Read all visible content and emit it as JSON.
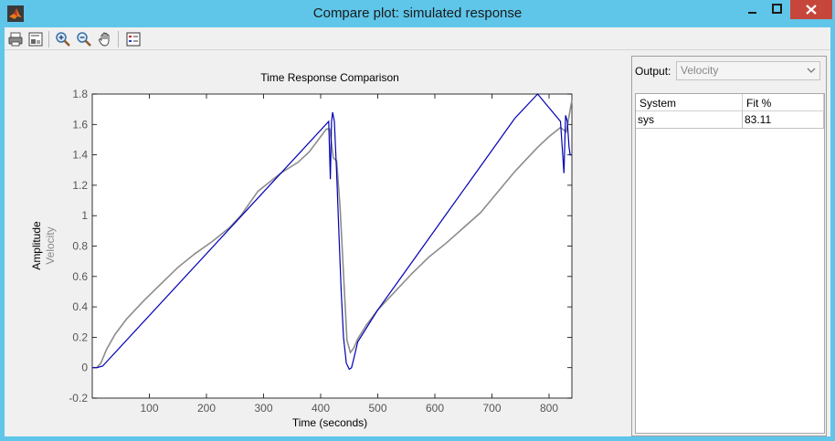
{
  "window": {
    "title": "Compare plot: simulated response",
    "app_icon": "matlab-icon"
  },
  "toolbar": {
    "items": [
      "print-icon",
      "print-preview-icon",
      "zoom-in-icon",
      "zoom-out-icon",
      "pan-hand-icon",
      "legend-icon"
    ]
  },
  "panel": {
    "output_label": "Output:",
    "output_value": "Velocity",
    "table": {
      "headers": [
        "System",
        "Fit %"
      ],
      "rows": [
        [
          "sys",
          "83.11"
        ]
      ]
    }
  },
  "chart_data": {
    "type": "line",
    "title": "Time Response Comparison",
    "xlabel": "Time (seconds)",
    "ylabel": "Amplitude",
    "ylabel2": "Velocity",
    "xlim": [
      0,
      840
    ],
    "ylim": [
      -0.2,
      1.8
    ],
    "xticks": [
      100,
      200,
      300,
      400,
      500,
      600,
      700,
      800
    ],
    "yticks": [
      -0.2,
      0,
      0.2,
      0.4,
      0.6,
      0.8,
      1,
      1.2,
      1.4,
      1.6,
      1.8
    ],
    "grid": false,
    "series": [
      {
        "color": "#8c8c8c",
        "x": [
          0,
          8,
          15,
          25,
          40,
          60,
          90,
          120,
          150,
          180,
          210,
          240,
          260,
          275,
          290,
          300,
          310,
          330,
          360,
          380,
          400,
          410,
          416,
          422,
          428,
          434,
          440,
          446,
          452,
          458,
          465,
          480,
          500,
          530,
          560,
          590,
          620,
          650,
          680,
          700,
          720,
          740,
          760,
          780,
          800,
          820,
          830,
          838,
          840
        ],
        "y": [
          0,
          0,
          0.03,
          0.12,
          0.22,
          0.32,
          0.44,
          0.55,
          0.66,
          0.75,
          0.83,
          0.92,
          1.0,
          1.08,
          1.16,
          1.19,
          1.22,
          1.28,
          1.35,
          1.42,
          1.52,
          1.57,
          1.57,
          1.38,
          1.36,
          1.05,
          0.62,
          0.18,
          0.1,
          0.13,
          0.19,
          0.28,
          0.38,
          0.5,
          0.62,
          0.73,
          0.82,
          0.92,
          1.02,
          1.11,
          1.2,
          1.29,
          1.37,
          1.45,
          1.52,
          1.58,
          1.55,
          1.72,
          1.76
        ]
      },
      {
        "color": "#0000b4",
        "x": [
          0,
          8,
          18,
          414,
          417,
          419,
          421,
          424,
          428,
          432,
          436,
          440,
          445,
          450,
          454,
          458,
          465,
          500,
          540,
          580,
          620,
          660,
          700,
          740,
          780,
          820,
          826,
          829,
          832,
          835,
          837,
          840
        ],
        "y": [
          0,
          0,
          0.01,
          1.62,
          1.24,
          1.62,
          1.68,
          1.62,
          1.28,
          0.88,
          0.5,
          0.2,
          0.03,
          -0.01,
          0.0,
          0.06,
          0.17,
          0.38,
          0.59,
          0.8,
          1.01,
          1.22,
          1.43,
          1.64,
          1.85,
          1.62,
          1.28,
          1.66,
          1.62,
          1.45,
          1.4,
          1.4
        ]
      }
    ]
  }
}
